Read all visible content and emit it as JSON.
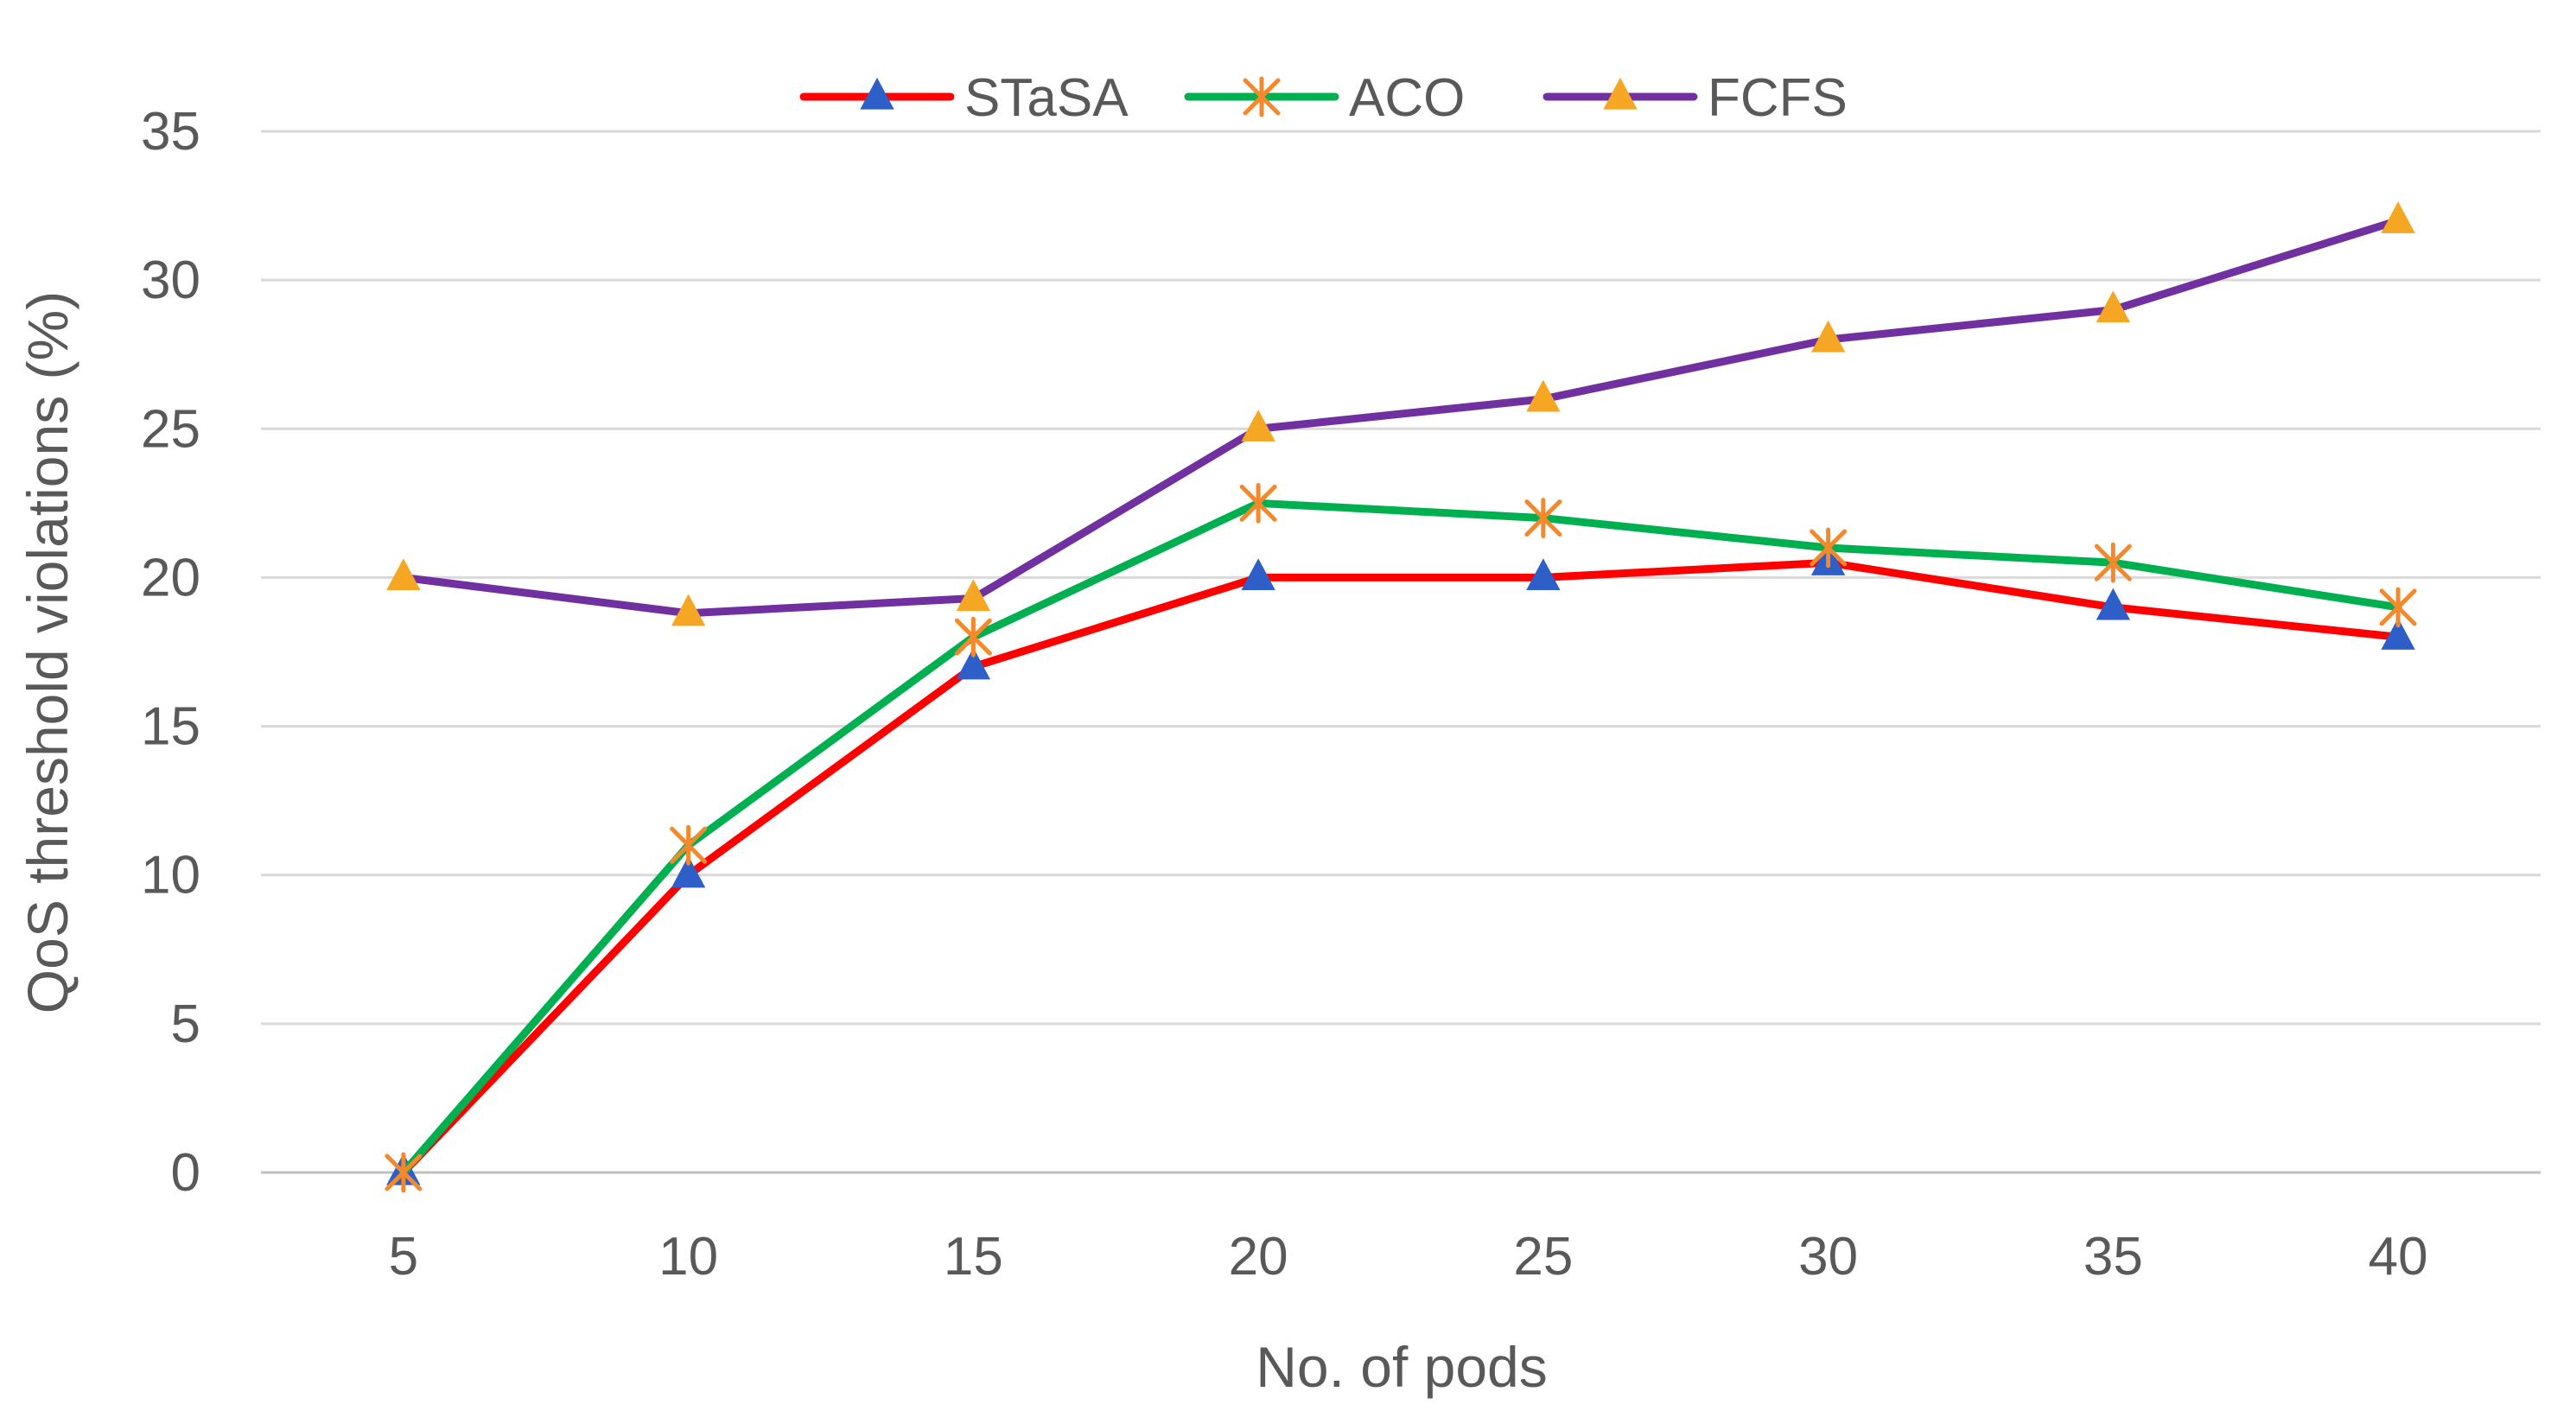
{
  "chart_data": {
    "type": "line",
    "title": "",
    "xlabel": "No. of pods",
    "ylabel": "QoS threshold violations (%)",
    "categories": [
      "5",
      "10",
      "15",
      "20",
      "25",
      "30",
      "35",
      "40"
    ],
    "ylim": [
      0,
      35
    ],
    "yticks": [
      "0",
      "5",
      "10",
      "15",
      "20",
      "25",
      "30",
      "35"
    ],
    "grid": true,
    "legend_position": "top",
    "series": [
      {
        "name": "STaSA",
        "values": [
          0,
          10,
          17,
          20,
          20,
          20.5,
          19,
          18
        ],
        "line_color": "#ff0000",
        "marker": "triangle",
        "marker_color": "#2e5fc9"
      },
      {
        "name": "ACO",
        "values": [
          0,
          11,
          18,
          22.5,
          22,
          21,
          20.5,
          19
        ],
        "line_color": "#00b050",
        "marker": "asterisk",
        "marker_color": "#f4892c"
      },
      {
        "name": "FCFS",
        "values": [
          20,
          18.8,
          19.3,
          25,
          26,
          28,
          29,
          32
        ],
        "line_color": "#7030a0",
        "marker": "triangle",
        "marker_color": "#f5a623"
      }
    ]
  }
}
